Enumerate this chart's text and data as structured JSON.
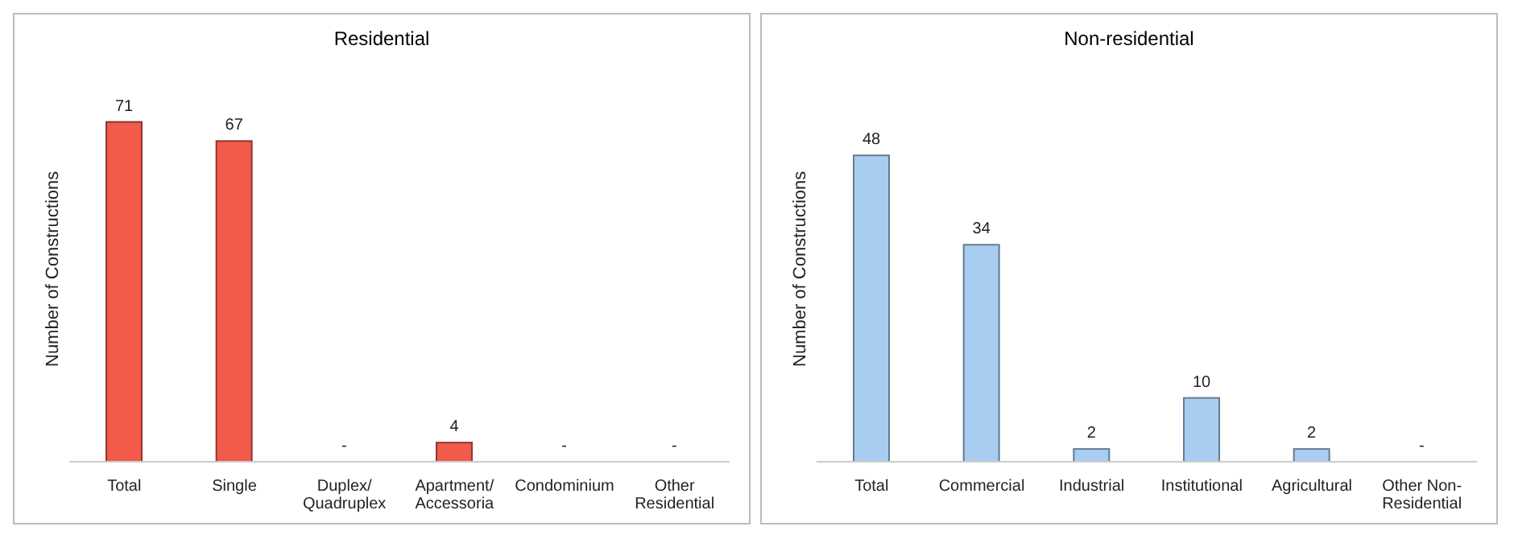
{
  "chart_data": [
    {
      "type": "bar",
      "title": "Residential",
      "ylabel": "Number of Constructions",
      "categories": [
        "Total",
        "Single",
        "Duplex/\nQuadruplex",
        "Apartment/\nAccessoria",
        "Condominium",
        "Other\nResidential"
      ],
      "values": [
        71,
        67,
        0,
        4,
        0,
        0
      ],
      "value_labels": [
        "71",
        "67",
        "-",
        "4",
        "-",
        "-"
      ],
      "color": "#f25a4b",
      "tick_labels": "x"
    },
    {
      "type": "bar",
      "title": "Non-residential",
      "ylabel": "Number of Constructions",
      "categories": [
        "Total",
        "Commercial",
        "Industrial",
        "Institutional",
        "Agricultural",
        "Other Non-\nResidential"
      ],
      "values": [
        48,
        34,
        2,
        10,
        2,
        0
      ],
      "value_labels": [
        "48",
        "34",
        "2",
        "10",
        "2",
        "-"
      ],
      "color": "#a9cdf0",
      "tick_labels": "x"
    }
  ]
}
